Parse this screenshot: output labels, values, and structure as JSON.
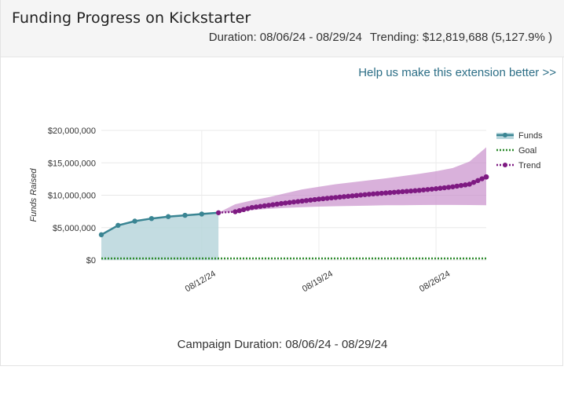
{
  "header": {
    "title": "Funding Progress on Kickstarter",
    "duration": "Duration: 08/06/24 - 08/29/24",
    "trending": "Trending: $12,819,688 (5,127.9% )"
  },
  "feedback_link": "Help us make this extension better >>",
  "caption": "Campaign Duration: 08/06/24 - 08/29/24",
  "colors": {
    "funds": "#3a8593",
    "funds_fill": "#b9d6dc",
    "goal": "#2e8b2e",
    "trend": "#7e1a82",
    "trend_band": "#c990cc"
  },
  "chart_data": {
    "type": "line",
    "title": "",
    "xlabel": "",
    "ylabel": "Funds Raised",
    "x_range": [
      "08/06/24",
      "08/29/24"
    ],
    "ylim": [
      0,
      20000000
    ],
    "y_ticks": [
      {
        "value": 0,
        "label": "$0"
      },
      {
        "value": 5000000,
        "label": "$5,000,000"
      },
      {
        "value": 10000000,
        "label": "$10,000,000"
      },
      {
        "value": 15000000,
        "label": "$15,000,000"
      },
      {
        "value": 20000000,
        "label": "$20,000,000"
      }
    ],
    "x_ticks": [
      {
        "value": "08/12/24",
        "label": "08/12/24"
      },
      {
        "value": "08/19/24",
        "label": "08/19/24"
      },
      {
        "value": "08/26/24",
        "label": "08/26/24"
      }
    ],
    "grid": true,
    "legend": {
      "position": "right",
      "entries": [
        {
          "label": "Funds",
          "icon": "line-with-dot-and-area"
        },
        {
          "label": "Goal",
          "icon": "dotted-line"
        },
        {
          "label": "Trend",
          "icon": "dotted-line-with-dot"
        }
      ]
    },
    "series": [
      {
        "name": "Funds",
        "x": [
          "08/06/24",
          "08/07/24",
          "08/08/24",
          "08/09/24",
          "08/10/24",
          "08/11/24",
          "08/12/24",
          "08/13/24"
        ],
        "values": [
          3900000,
          5350000,
          6000000,
          6400000,
          6700000,
          6900000,
          7100000,
          7300000
        ]
      },
      {
        "name": "Goal",
        "x": [
          "08/06/24",
          "08/29/24"
        ],
        "values": [
          245000,
          245000
        ]
      },
      {
        "name": "Trend",
        "x": [
          "08/13/24",
          "08/14/24",
          "08/15/24",
          "08/16/24",
          "08/17/24",
          "08/18/24",
          "08/19/24",
          "08/20/24",
          "08/21/24",
          "08/22/24",
          "08/23/24",
          "08/24/24",
          "08/25/24",
          "08/26/24",
          "08/27/24",
          "08/28/24",
          "08/29/24"
        ],
        "values": [
          7300000,
          7450000,
          8100000,
          8450000,
          8800000,
          9100000,
          9400000,
          9650000,
          9900000,
          10150000,
          10350000,
          10550000,
          10750000,
          11000000,
          11300000,
          11700000,
          12819688
        ],
        "band_low": [
          7300000,
          7400000,
          7700000,
          7900000,
          8050000,
          8150000,
          8250000,
          8300000,
          8350000,
          8400000,
          8450000,
          8450000,
          8480000,
          8500000,
          8500000,
          8480000,
          8450000
        ],
        "band_high": [
          7300000,
          8600000,
          9200000,
          9700000,
          10300000,
          10900000,
          11300000,
          11700000,
          12000000,
          12300000,
          12600000,
          12950000,
          13300000,
          13700000,
          14200000,
          15200000,
          17400000
        ]
      }
    ]
  }
}
